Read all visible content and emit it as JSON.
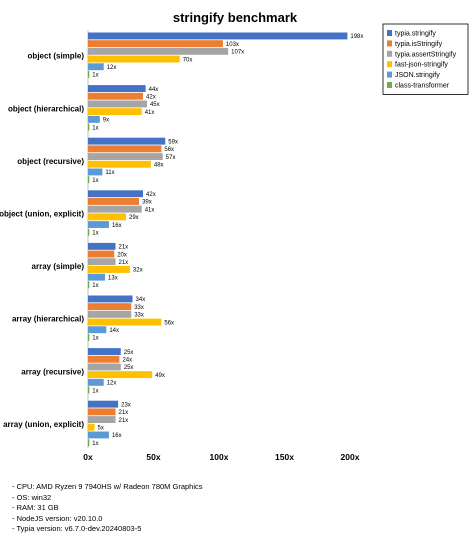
{
  "chart_data": {
    "type": "bar",
    "orientation": "horizontal",
    "title": "stringify benchmark",
    "categories": [
      "object (simple)",
      "object (hierarchical)",
      "object (recursive)",
      "object (union, explicit)",
      "array (simple)",
      "array (hierarchical)",
      "array (recursive)",
      "array (union, explicit)"
    ],
    "series": [
      {
        "name": "typia.stringify",
        "color": "#4472c4",
        "values": [
          198,
          44,
          59,
          42,
          21,
          34,
          25,
          23
        ]
      },
      {
        "name": "typia.isStringify",
        "color": "#ed7d31",
        "values": [
          103,
          42,
          56,
          39,
          20,
          33,
          24,
          21
        ]
      },
      {
        "name": "typia.assertStringify",
        "color": "#a5a5a5",
        "values": [
          107,
          45,
          57,
          41,
          21,
          33,
          25,
          21
        ]
      },
      {
        "name": "fast-json-stringify",
        "color": "#ffc000",
        "values": [
          70,
          41,
          48,
          29,
          32,
          56,
          49,
          5
        ]
      },
      {
        "name": "JSON.stringify",
        "color": "#5b9bd5",
        "values": [
          12,
          9,
          11,
          16,
          13,
          14,
          12,
          16
        ]
      },
      {
        "name": "class-transformer",
        "color": "#70ad47",
        "values": [
          1,
          1,
          1,
          1,
          1,
          1,
          1,
          1
        ]
      }
    ],
    "value_labels": [
      [
        "198x",
        "42x"
      ],
      [
        "103x"
      ]
    ],
    "xticks": [
      "0x",
      "50x",
      "100x",
      "150x",
      "200x"
    ],
    "xlim": [
      0,
      200
    ],
    "legend_position": "top-right",
    "grid": false
  },
  "footer": {
    "lines": [
      "- CPU: AMD Ryzen 9 7940HS w/ Radeon 780M Graphics",
      "- OS: win32",
      "- RAM: 31 GB",
      "- NodeJS version: v20.10.0",
      "- Typia version: v6.7.0-dev.20240803-5"
    ]
  }
}
